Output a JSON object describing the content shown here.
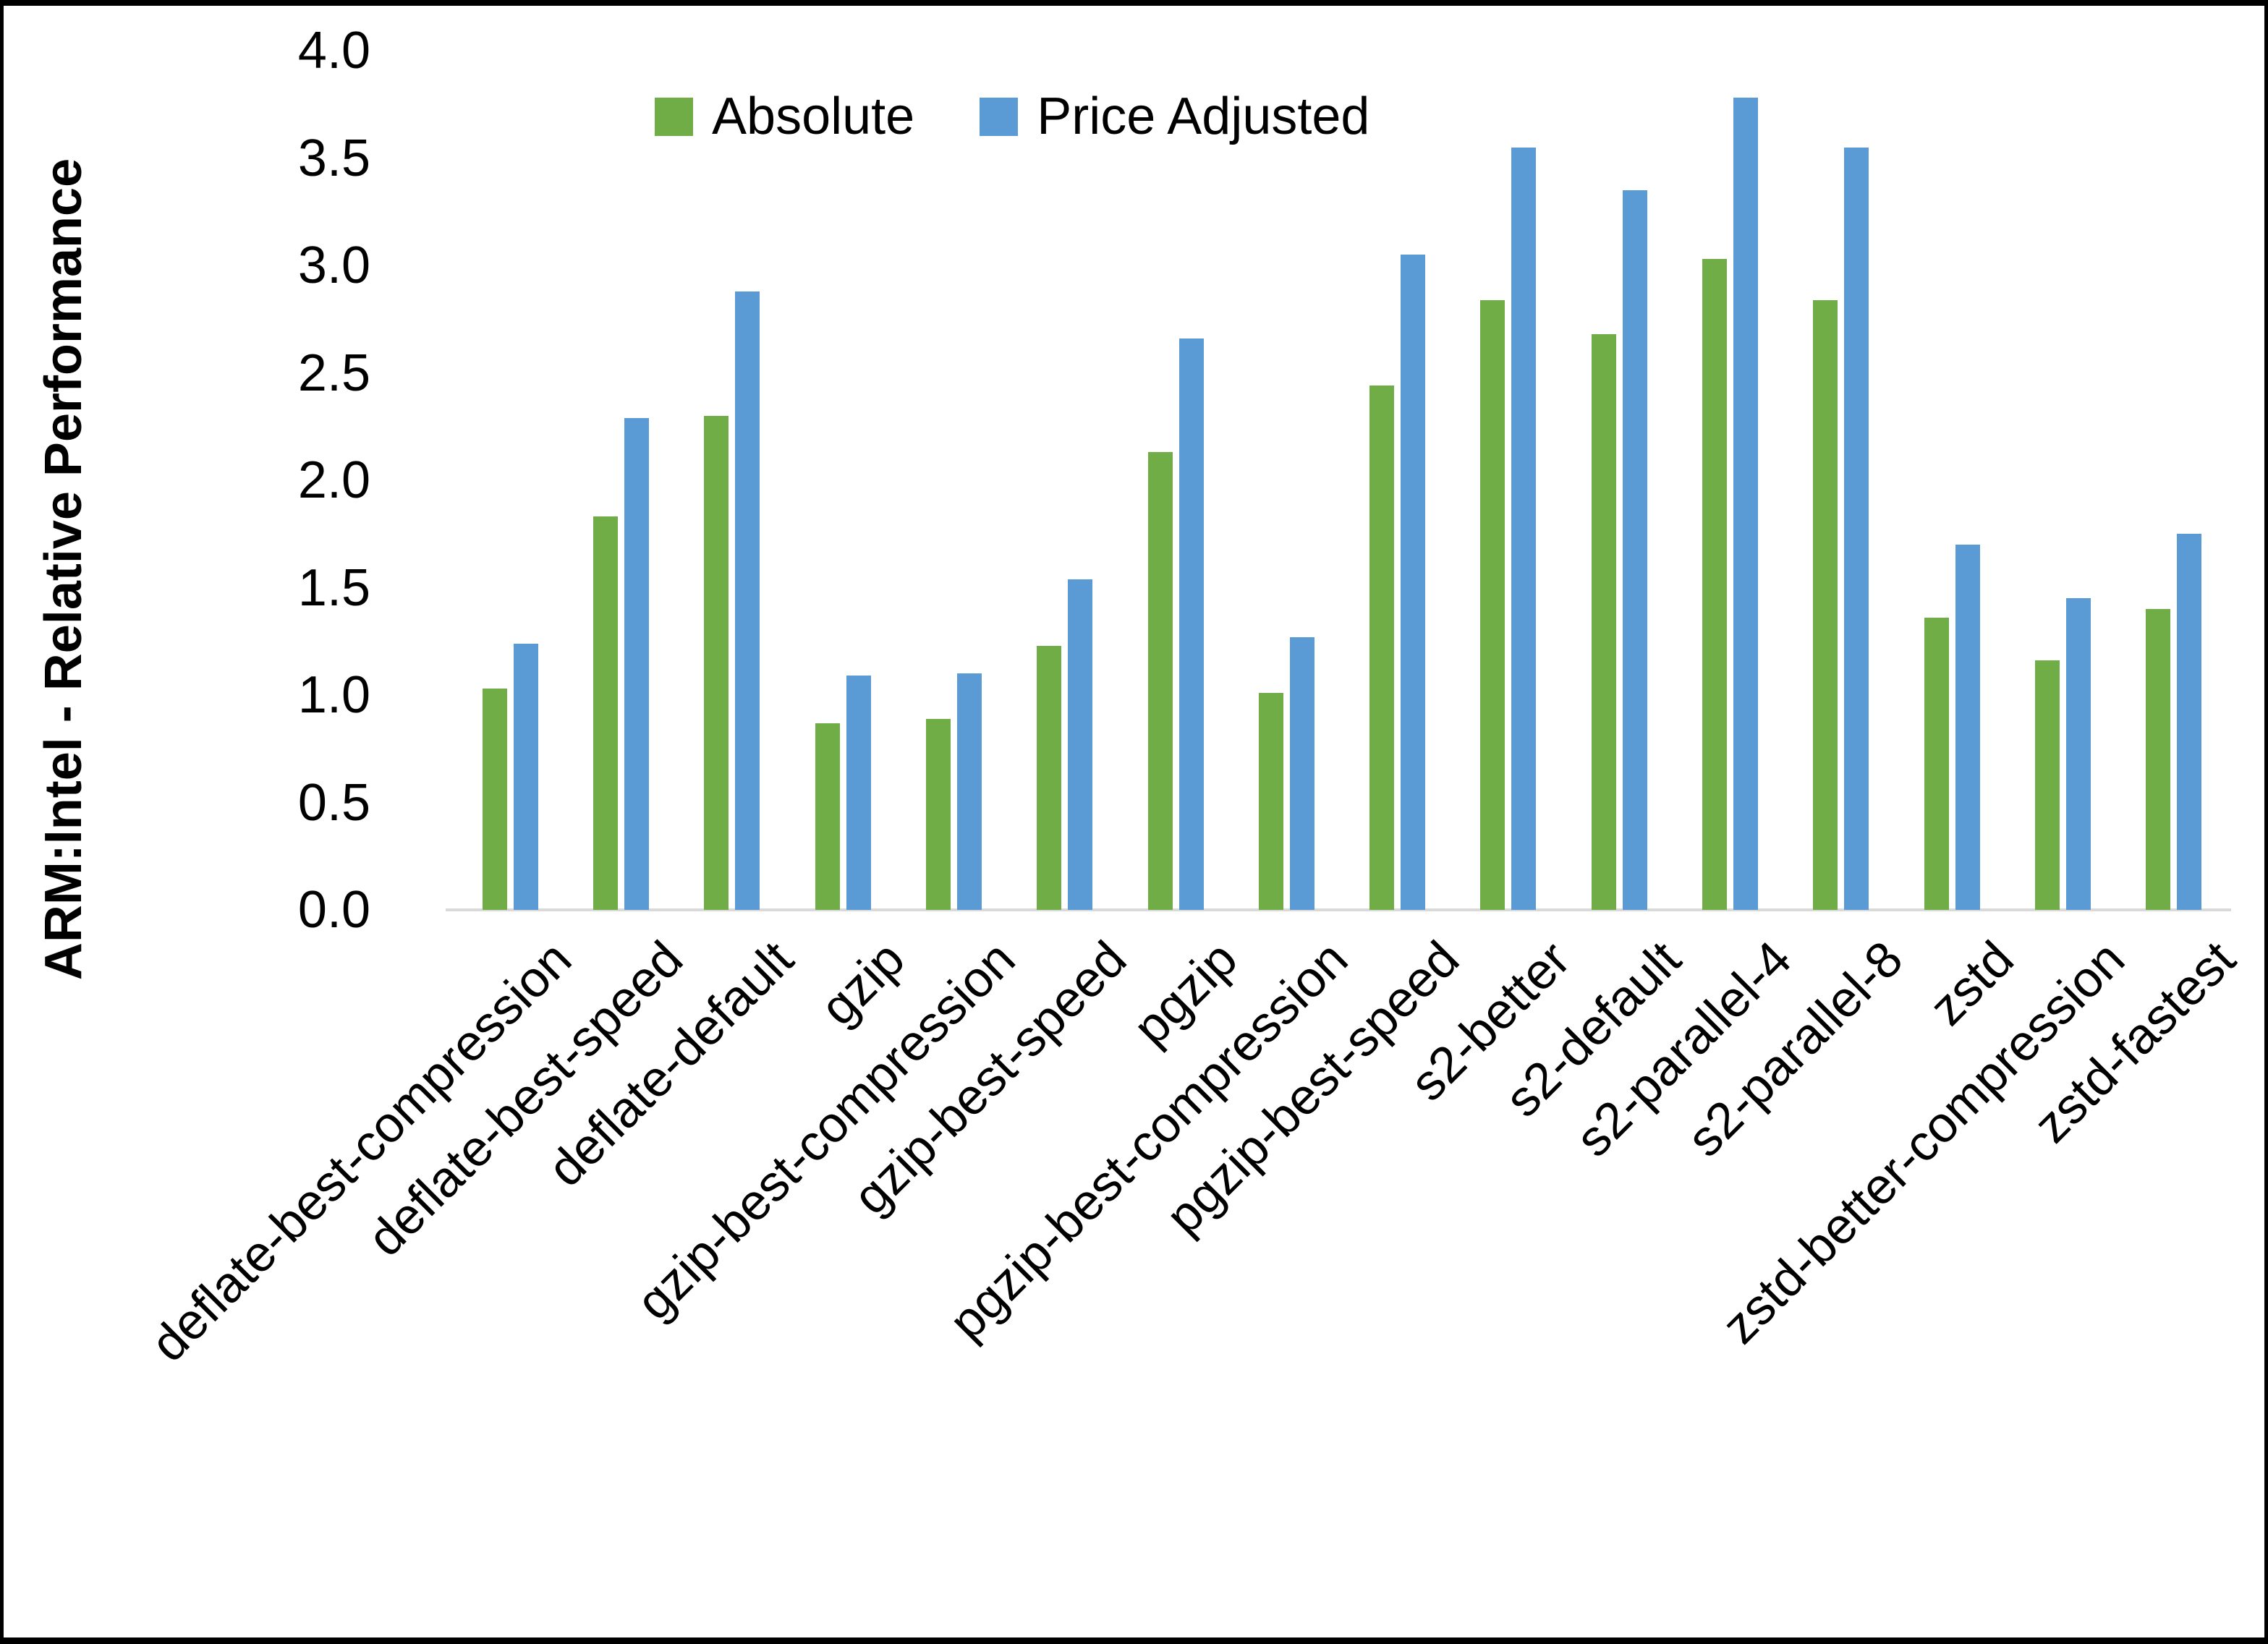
{
  "y_axis": {
    "title": "ARM:Intel - Relative Performance",
    "ticks": [
      "0.0",
      "0.5",
      "1.0",
      "1.5",
      "2.0",
      "2.5",
      "3.0",
      "3.5",
      "4.0"
    ],
    "min": 0.0,
    "max": 4.0,
    "step": 0.5
  },
  "legend": [
    {
      "label": "Absolute",
      "color": "#70AD47"
    },
    {
      "label": "Price Adjusted",
      "color": "#5B9BD5"
    }
  ],
  "colors": {
    "absolute_green": "#70AD47",
    "price_adjusted_blue": "#5B9BD5",
    "axis_line_gray": "#D9D9D9",
    "frame_black": "#000000"
  },
  "chart_data": {
    "type": "bar",
    "title": "",
    "xlabel": "",
    "ylabel": "ARM:Intel - Relative Performance",
    "ylim": [
      0.0,
      4.0
    ],
    "grid": false,
    "legend_position": "top",
    "categories": [
      "deflate-best-compression",
      "deflate-best-speed",
      "deflate-default",
      "gzip",
      "gzip-best-compression",
      "gzip-best-speed",
      "pgzip",
      "pgzip-best-compression",
      "pgzip-best-speed",
      "s2-better",
      "s2-default",
      "s2-parallel-4",
      "s2-parallel-8",
      "zstd",
      "zstd-better-compression",
      "zstd-fastest"
    ],
    "series": [
      {
        "name": "Absolute",
        "color": "#70AD47",
        "values": [
          1.03,
          1.83,
          2.3,
          0.87,
          0.89,
          1.23,
          2.13,
          1.01,
          2.44,
          2.84,
          2.68,
          3.03,
          2.84,
          1.36,
          1.16,
          1.4
        ]
      },
      {
        "name": "Price Adjusted",
        "color": "#5B9BD5",
        "values": [
          1.24,
          2.29,
          2.88,
          1.09,
          1.1,
          1.54,
          2.66,
          1.27,
          3.05,
          3.55,
          3.35,
          3.78,
          3.55,
          1.7,
          1.45,
          1.75
        ]
      }
    ]
  }
}
